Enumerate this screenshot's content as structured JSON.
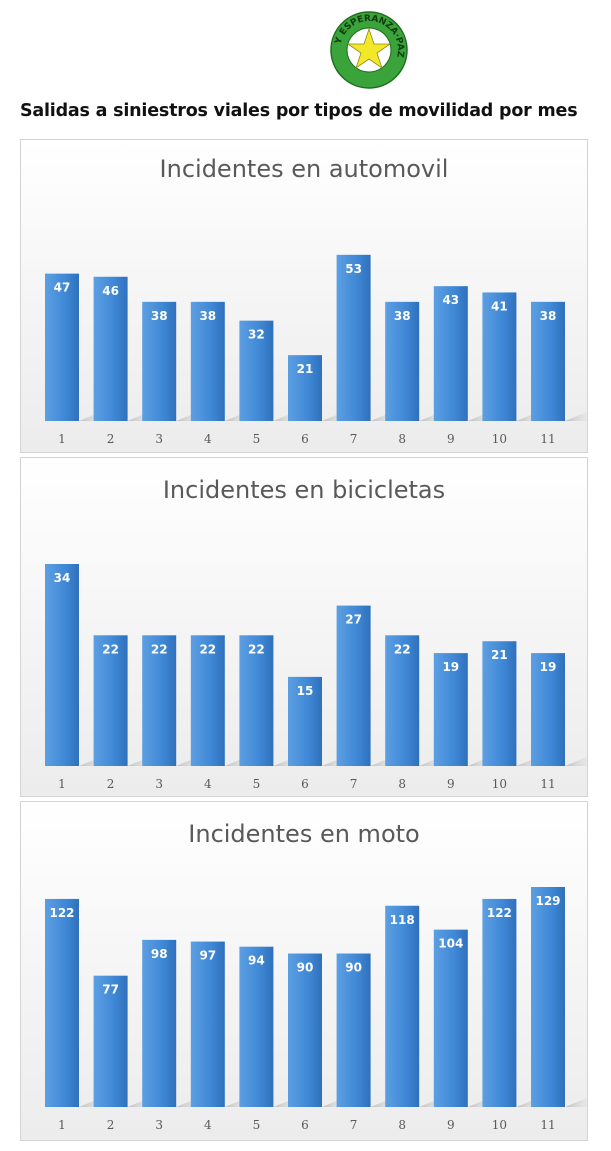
{
  "page": {
    "heading": "Salidas a siniestros viales por tipos de movilidad por mes",
    "logo": {
      "name": "logo-paz-esperanza",
      "ring_text": "Y ESPERANZA·PAZ",
      "colors": {
        "ring": "#3aa33a",
        "star": "#f3e72a",
        "ring_inner": "#ffffff"
      }
    }
  },
  "colors": {
    "bar": "#3f88d6",
    "bar_light": "#5d9fe2",
    "bar_dark": "#2f70bb",
    "label": "#ffffff",
    "axis_text": "#595959"
  },
  "chart_data": [
    {
      "type": "bar",
      "title": "Incidentes en  automovil",
      "categories": [
        "1",
        "2",
        "3",
        "4",
        "5",
        "6",
        "7",
        "8",
        "9",
        "10",
        "11"
      ],
      "values": [
        47,
        46,
        38,
        38,
        32,
        21,
        53,
        38,
        43,
        41,
        38
      ],
      "xlabel": "",
      "ylabel": "",
      "ylim": [
        0,
        59
      ],
      "grid": false,
      "legend": "none"
    },
    {
      "type": "bar",
      "title": "Incidentes en bicicletas",
      "categories": [
        "1",
        "2",
        "3",
        "4",
        "5",
        "6",
        "7",
        "8",
        "9",
        "10",
        "11"
      ],
      "values": [
        34,
        22,
        22,
        22,
        22,
        15,
        27,
        22,
        19,
        21,
        19
      ],
      "xlabel": "",
      "ylabel": "",
      "ylim": [
        0,
        34
      ],
      "grid": false,
      "legend": "none"
    },
    {
      "type": "bar",
      "title": "Incidentes en moto",
      "categories": [
        "1",
        "2",
        "3",
        "4",
        "5",
        "6",
        "7",
        "8",
        "9",
        "10",
        "11"
      ],
      "values": [
        122,
        77,
        98,
        97,
        94,
        90,
        90,
        118,
        104,
        122,
        129
      ],
      "xlabel": "",
      "ylabel": "",
      "ylim": [
        0,
        129
      ],
      "grid": false,
      "legend": "none"
    }
  ]
}
